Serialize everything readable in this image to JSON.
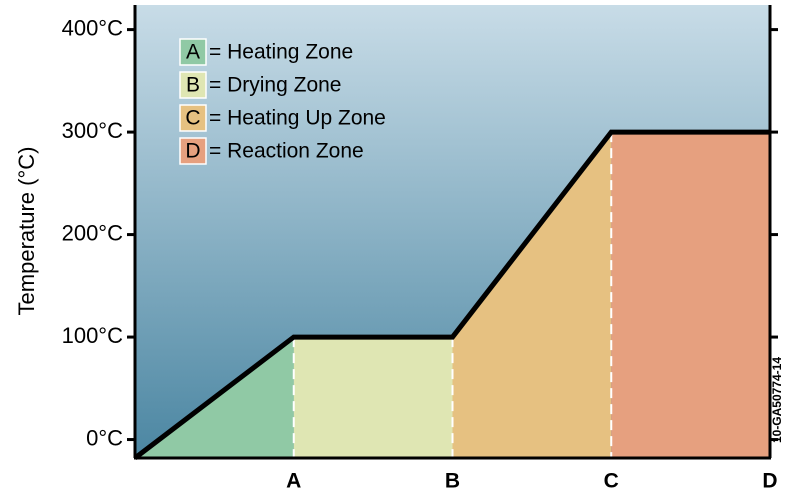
{
  "chart_data": {
    "type": "line",
    "y_label": "Temperature (°C)",
    "side_note": "10-GA50774-14",
    "x": [
      0,
      1,
      2,
      3,
      4
    ],
    "values": [
      -18,
      100,
      100,
      300,
      300
    ],
    "xlim": [
      0,
      4
    ],
    "xticks": [
      {
        "value": 1,
        "label": "A"
      },
      {
        "value": 2,
        "label": "B"
      },
      {
        "value": 3,
        "label": "C"
      },
      {
        "value": 4,
        "label": "D"
      }
    ],
    "ylim": [
      -18,
      424
    ],
    "yticks": [
      {
        "value": 0,
        "label": "0°C"
      },
      {
        "value": 100,
        "label": "100°C"
      },
      {
        "value": 200,
        "label": "200°C"
      },
      {
        "value": 300,
        "label": "300°C"
      },
      {
        "value": 400,
        "label": "400°C"
      }
    ],
    "line_color": "#000000",
    "zones": [
      {
        "key": "A",
        "label": "= Heating Zone",
        "color": "#90c9a5"
      },
      {
        "key": "B",
        "label": "= Drying Zone",
        "color": "#dfe6b3"
      },
      {
        "key": "C",
        "label": "= Heating Up Zone",
        "color": "#e6c181"
      },
      {
        "key": "D",
        "label": "= Reaction Zone",
        "color": "#e6a07f"
      }
    ]
  }
}
